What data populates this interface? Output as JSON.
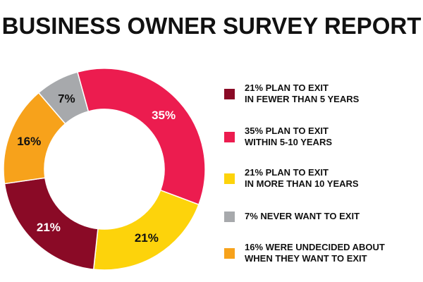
{
  "title": "BUSINESS OWNER SURVEY REPORT",
  "chart_data": {
    "type": "pie",
    "title": "BUSINESS OWNER SURVEY REPORT",
    "slices": [
      {
        "value": 35,
        "label": "35%",
        "color": "#EC1C4F"
      },
      {
        "value": 21,
        "label": "21%",
        "color": "#FDD30B"
      },
      {
        "value": 21,
        "label": "21%",
        "color": "#8A0A26"
      },
      {
        "value": 16,
        "label": "16%",
        "color": "#F7A21B"
      },
      {
        "value": 7,
        "label": "7%",
        "color": "#A7A9AC"
      }
    ]
  },
  "legend": [
    {
      "line1": "21% PLAN TO EXIT",
      "line2": "IN FEWER THAN 5 YEARS",
      "color": "#8A0A26"
    },
    {
      "line1": "35% PLAN TO EXIT",
      "line2": "WITHIN 5-10 YEARS",
      "color": "#EC1C4F"
    },
    {
      "line1": "21% PLAN TO EXIT",
      "line2": "IN MORE THAN 10 YEARS",
      "color": "#FDD30B"
    },
    {
      "line1": "7% NEVER WANT TO EXIT",
      "line2": "",
      "color": "#A7A9AC"
    },
    {
      "line1": "16% WERE UNDECIDED ABOUT",
      "line2": "WHEN THEY WANT TO EXIT",
      "color": "#F7A21B"
    }
  ]
}
